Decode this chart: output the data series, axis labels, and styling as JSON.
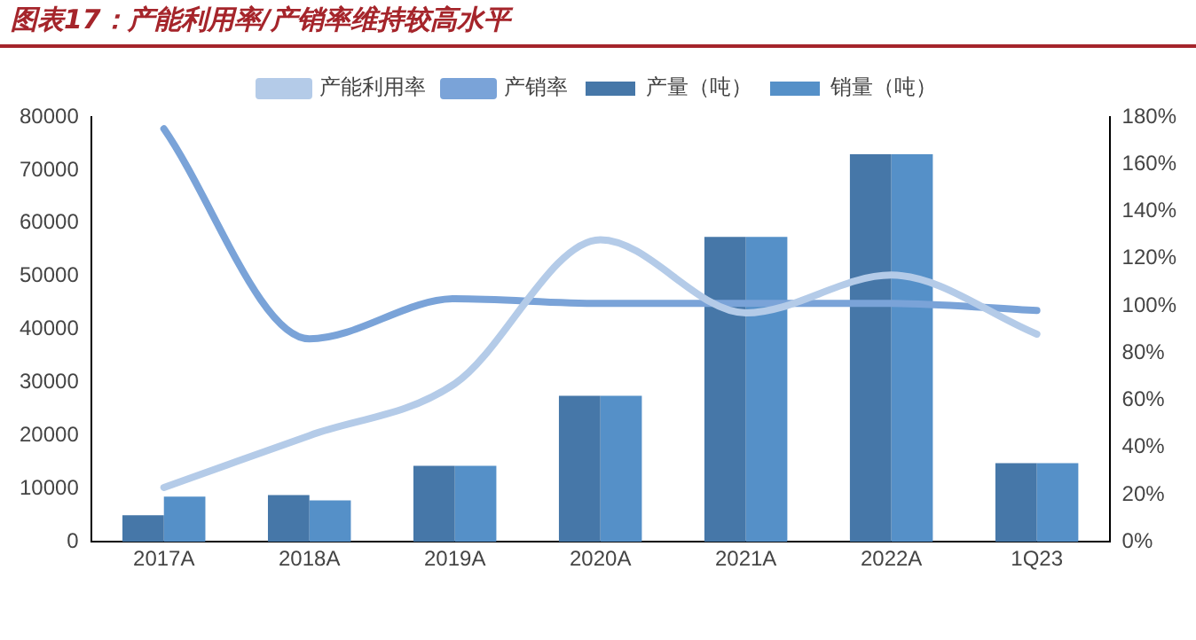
{
  "chart_data": {
    "type": "bar",
    "title": "图表17：产能利用率/产销率维持较高水平",
    "categories": [
      "2017A",
      "2018A",
      "2019A",
      "2020A",
      "2021A",
      "2022A",
      "1Q23"
    ],
    "series": [
      {
        "name": "产量（吨）",
        "color": "#4677a8",
        "values": [
          5000,
          8800,
          14300,
          27500,
          57400,
          73000,
          14800
        ]
      },
      {
        "name": "销量（吨）",
        "color": "#5590c8",
        "values": [
          8500,
          7800,
          14300,
          27500,
          57400,
          73000,
          14800
        ]
      },
      {
        "name": "产能利用率",
        "type": "line",
        "axis": "y2",
        "color": "#b4cbe8",
        "values": [
          23,
          45,
          67,
          128,
          97,
          113,
          88
        ]
      },
      {
        "name": "产销率",
        "type": "line",
        "axis": "y2",
        "color": "#7aa3d8",
        "values": [
          175,
          86,
          103,
          101,
          101,
          101,
          98
        ]
      }
    ],
    "ylim": [
      0,
      80000
    ],
    "yticks": [
      0,
      10000,
      20000,
      30000,
      40000,
      50000,
      60000,
      70000,
      80000
    ],
    "y2lim": [
      0,
      180
    ],
    "y2ticks": [
      {
        "value": 0,
        "label": "0%"
      },
      {
        "value": 20,
        "label": "20%"
      },
      {
        "value": 40,
        "label": "40%"
      },
      {
        "value": 60,
        "label": "60%"
      },
      {
        "value": 80,
        "label": "80%"
      },
      {
        "value": 100,
        "label": "100%"
      },
      {
        "value": 120,
        "label": "120%"
      },
      {
        "value": 140,
        "label": "140%"
      },
      {
        "value": 160,
        "label": "160%"
      },
      {
        "value": 180,
        "label": "180%"
      }
    ],
    "legend": "top",
    "grid": false,
    "marker": "none"
  }
}
